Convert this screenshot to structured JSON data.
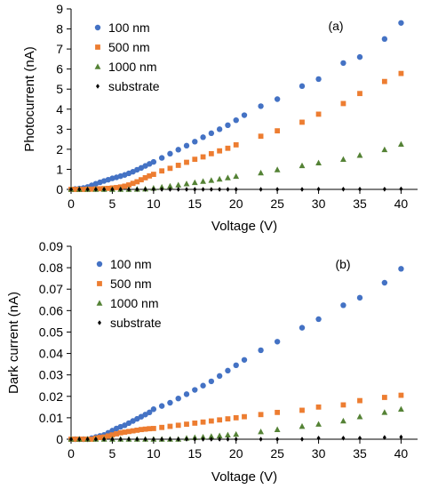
{
  "chart_data": [
    {
      "type": "scatter",
      "panel_label": "(a)",
      "xlabel": "Voltage (V)",
      "ylabel": "Photocurrent (nA)",
      "xlim": [
        0,
        42
      ],
      "ylim": [
        0,
        9
      ],
      "xticks": [
        0,
        5,
        10,
        15,
        20,
        25,
        30,
        35,
        40
      ],
      "yticks": [
        0,
        1,
        2,
        3,
        4,
        5,
        6,
        7,
        8,
        9
      ],
      "grid": false,
      "legend_position": "top-left",
      "series": [
        {
          "name": "100 nm",
          "marker": "circle",
          "color": "#4472C4",
          "x": [
            0,
            0.5,
            1,
            1.5,
            2,
            2.5,
            3,
            3.5,
            4,
            4.5,
            5,
            5.5,
            6,
            6.5,
            7,
            7.5,
            8,
            8.5,
            9,
            9.5,
            10,
            11,
            12,
            13,
            14,
            15,
            16,
            17,
            18,
            19,
            20,
            21,
            23,
            25,
            28,
            30,
            33,
            35,
            38,
            40
          ],
          "y": [
            0,
            0.02,
            0.04,
            0.07,
            0.12,
            0.2,
            0.28,
            0.35,
            0.42,
            0.48,
            0.55,
            0.6,
            0.66,
            0.72,
            0.8,
            0.88,
            0.98,
            1.07,
            1.17,
            1.27,
            1.37,
            1.57,
            1.78,
            1.98,
            2.18,
            2.38,
            2.6,
            2.8,
            3.0,
            3.2,
            3.45,
            3.7,
            4.15,
            4.5,
            5.15,
            5.5,
            6.3,
            6.6,
            7.5,
            8.3
          ]
        },
        {
          "name": "500 nm",
          "marker": "square",
          "color": "#ED7D31",
          "x": [
            0,
            0.5,
            1,
            1.5,
            2,
            2.5,
            3,
            3.5,
            4,
            4.5,
            5,
            5.5,
            6,
            6.5,
            7,
            7.5,
            8,
            8.5,
            9,
            9.5,
            10,
            11,
            12,
            13,
            14,
            15,
            16,
            17,
            18,
            19,
            20,
            23,
            25,
            28,
            30,
            33,
            35,
            38,
            40
          ],
          "y": [
            0,
            0,
            0,
            0,
            0.01,
            0.01,
            0.02,
            0.03,
            0.04,
            0.05,
            0.07,
            0.09,
            0.12,
            0.16,
            0.22,
            0.3,
            0.38,
            0.48,
            0.58,
            0.67,
            0.75,
            0.92,
            1.05,
            1.2,
            1.35,
            1.5,
            1.62,
            1.78,
            1.92,
            2.05,
            2.22,
            2.65,
            2.92,
            3.35,
            3.75,
            4.28,
            4.78,
            5.38,
            5.78
          ]
        },
        {
          "name": "1000 nm",
          "marker": "triangle",
          "color": "#548235",
          "x": [
            0,
            1,
            2,
            3,
            4,
            5,
            6,
            7,
            8,
            9,
            10,
            11,
            12,
            13,
            14,
            15,
            16,
            17,
            18,
            19,
            20,
            23,
            25,
            28,
            30,
            33,
            35,
            38,
            40
          ],
          "y": [
            0,
            0,
            0,
            0,
            0,
            0,
            0,
            0,
            0.01,
            0.02,
            0.06,
            0.11,
            0.16,
            0.22,
            0.28,
            0.34,
            0.4,
            0.45,
            0.51,
            0.58,
            0.65,
            0.82,
            0.98,
            1.18,
            1.32,
            1.5,
            1.7,
            1.98,
            2.25
          ]
        },
        {
          "name": "substrate",
          "marker": "diamond",
          "color": "#000000",
          "x": [
            0,
            1,
            2,
            3,
            4,
            5,
            6,
            7,
            8,
            9,
            10,
            11,
            12,
            13,
            14,
            15,
            16,
            17,
            18,
            19,
            20,
            23,
            25,
            28,
            30,
            33,
            35,
            38,
            40
          ],
          "y": [
            0,
            0,
            0,
            0,
            0,
            0,
            0,
            0,
            0,
            0,
            0,
            0,
            0,
            0,
            0,
            0,
            0,
            0,
            0,
            0,
            0,
            0,
            0,
            0,
            0.01,
            0.01,
            0.01,
            0.01,
            0.02
          ]
        }
      ]
    },
    {
      "type": "scatter",
      "panel_label": "(b)",
      "xlabel": "Voltage (V)",
      "ylabel": "Dark current (nA)",
      "xlim": [
        0,
        42
      ],
      "ylim": [
        0,
        0.09
      ],
      "xticks": [
        0,
        5,
        10,
        15,
        20,
        25,
        30,
        35,
        40
      ],
      "yticks": [
        0,
        0.01,
        0.02,
        0.03,
        0.04,
        0.05,
        0.06,
        0.07,
        0.08,
        0.09
      ],
      "grid": false,
      "legend_position": "top-left",
      "series": [
        {
          "name": "100 nm",
          "marker": "circle",
          "color": "#4472C4",
          "x": [
            0,
            0.5,
            1,
            1.5,
            2,
            2.5,
            3,
            3.5,
            4,
            4.5,
            5,
            5.5,
            6,
            6.5,
            7,
            7.5,
            8,
            8.5,
            9,
            9.5,
            10,
            11,
            12,
            13,
            14,
            15,
            16,
            17,
            18,
            19,
            20,
            21,
            23,
            25,
            28,
            30,
            33,
            35,
            38,
            40
          ],
          "y": [
            0,
            0,
            0,
            0,
            0,
            0.0005,
            0.001,
            0.0015,
            0.002,
            0.003,
            0.004,
            0.005,
            0.0058,
            0.0065,
            0.0075,
            0.0085,
            0.0095,
            0.0105,
            0.0115,
            0.0125,
            0.014,
            0.0155,
            0.017,
            0.019,
            0.021,
            0.023,
            0.025,
            0.027,
            0.0295,
            0.032,
            0.0345,
            0.037,
            0.0415,
            0.0455,
            0.052,
            0.056,
            0.0625,
            0.066,
            0.073,
            0.0795
          ]
        },
        {
          "name": "500 nm",
          "marker": "square",
          "color": "#ED7D31",
          "x": [
            0,
            0.5,
            1,
            1.5,
            2,
            2.5,
            3,
            3.5,
            4,
            4.5,
            5,
            5.5,
            6,
            6.5,
            7,
            7.5,
            8,
            8.5,
            9,
            9.5,
            10,
            11,
            12,
            13,
            14,
            15,
            16,
            17,
            18,
            19,
            20,
            21,
            23,
            25,
            28,
            30,
            33,
            35,
            38,
            40
          ],
          "y": [
            0,
            0,
            0,
            0,
            0,
            0,
            0.0005,
            0.0008,
            0.001,
            0.0015,
            0.002,
            0.0025,
            0.003,
            0.0033,
            0.0036,
            0.0039,
            0.0042,
            0.0045,
            0.0047,
            0.0049,
            0.005,
            0.0055,
            0.006,
            0.0065,
            0.007,
            0.0075,
            0.008,
            0.0085,
            0.009,
            0.0095,
            0.01,
            0.0105,
            0.0115,
            0.0125,
            0.0135,
            0.015,
            0.016,
            0.018,
            0.0195,
            0.0205
          ]
        },
        {
          "name": "1000 nm",
          "marker": "triangle",
          "color": "#548235",
          "x": [
            0,
            1,
            2,
            3,
            4,
            5,
            6,
            7,
            8,
            9,
            10,
            11,
            12,
            13,
            14,
            15,
            16,
            17,
            18,
            19,
            20,
            23,
            25,
            28,
            30,
            33,
            35,
            38,
            40
          ],
          "y": [
            0,
            0,
            0,
            0,
            0,
            0,
            0,
            0,
            0,
            0,
            0,
            0,
            0,
            0,
            0.0005,
            0.0008,
            0.001,
            0.0013,
            0.0016,
            0.002,
            0.0023,
            0.0035,
            0.0045,
            0.006,
            0.007,
            0.0085,
            0.0105,
            0.0125,
            0.014
          ]
        },
        {
          "name": "substrate",
          "marker": "diamond",
          "color": "#000000",
          "x": [
            0,
            1,
            2,
            3,
            4,
            5,
            6,
            7,
            8,
            9,
            10,
            11,
            12,
            13,
            14,
            15,
            16,
            17,
            18,
            19,
            20,
            23,
            25,
            28,
            30,
            33,
            35,
            38,
            40
          ],
          "y": [
            0,
            0,
            0,
            0,
            0,
            0,
            0,
            0,
            0,
            0,
            0,
            0,
            0,
            0,
            0,
            0,
            0,
            0,
            0,
            0,
            0,
            0,
            0,
            0,
            0.0005,
            0.0005,
            0.0005,
            0.0008,
            0.001
          ]
        }
      ]
    }
  ]
}
